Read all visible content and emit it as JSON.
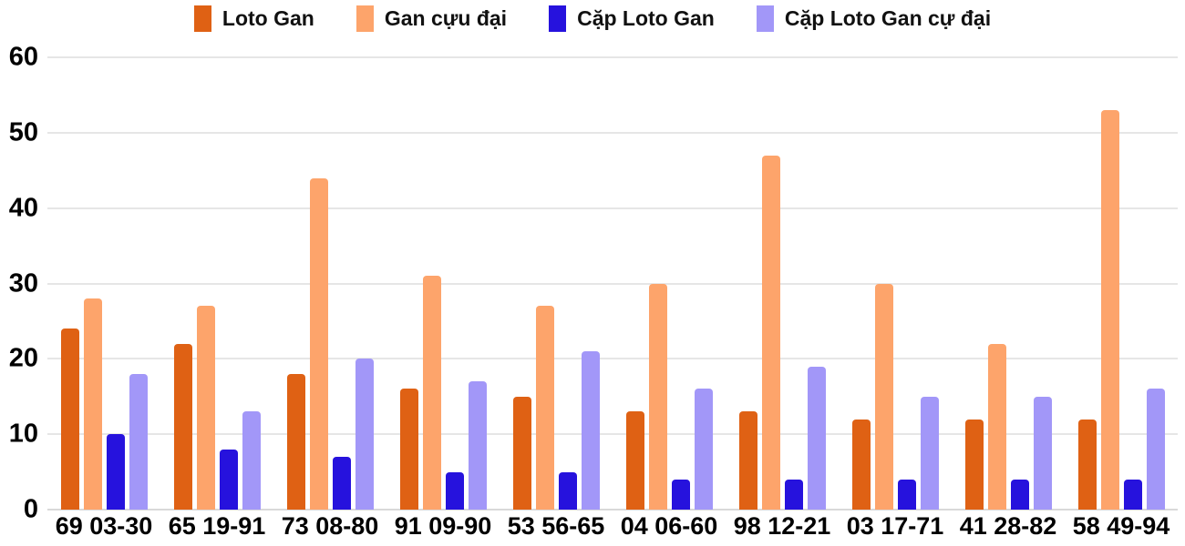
{
  "chart_data": {
    "type": "bar",
    "title": "",
    "xlabel": "",
    "ylabel": "",
    "ylim": [
      0,
      60
    ],
    "yticks": [
      0,
      10,
      20,
      30,
      40,
      50,
      60
    ],
    "grid": true,
    "legend_position": "top",
    "background_color": "#ffffff",
    "gridline_color": "#e6e6e6",
    "baseline_color": "#d9d9d9",
    "label_color": "#000000",
    "categories": [
      "69 03-30",
      "65 19-91",
      "73 08-80",
      "91 09-90",
      "53 56-65",
      "04 06-60",
      "98 12-21",
      "03 17-71",
      "41 28-82",
      "58 49-94"
    ],
    "series": [
      {
        "id": "loto-gan",
        "name": "Loto Gan",
        "color": "#df6114",
        "values": [
          24,
          22,
          18,
          16,
          15,
          13,
          13,
          12,
          12,
          12
        ]
      },
      {
        "id": "gan-cuu-dai",
        "name": "Gan cựu đại",
        "color": "#fda46b",
        "values": [
          28,
          27,
          44,
          31,
          27,
          30,
          47,
          30,
          22,
          53
        ]
      },
      {
        "id": "cap-loto-gan",
        "name": "Cặp Loto Gan",
        "color": "#2612dd",
        "values": [
          10,
          8,
          7,
          5,
          5,
          4,
          4,
          4,
          4,
          4
        ]
      },
      {
        "id": "cap-loto-gan-cu-dai",
        "name": "Cặp Loto Gan cự đại",
        "color": "#a297f8",
        "values": [
          18,
          13,
          20,
          17,
          21,
          16,
          19,
          15,
          15,
          16
        ]
      }
    ]
  }
}
